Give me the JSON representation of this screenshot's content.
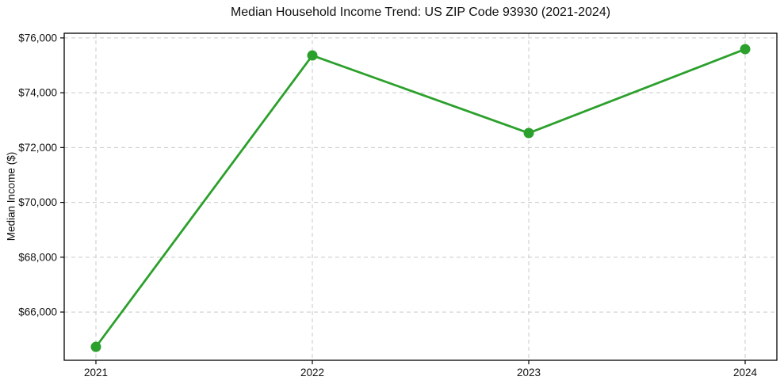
{
  "figure": {
    "title": "Median Household Income Trend: US ZIP Code 93930 (2021-2024)",
    "ylabel": "Median Income ($)"
  },
  "chart_data": {
    "type": "line",
    "title": "Median Household Income Trend: US ZIP Code 93930 (2021-2024)",
    "xlabel": "",
    "ylabel": "Median Income ($)",
    "categories": [
      "2021",
      "2022",
      "2023",
      "2024"
    ],
    "series": [
      {
        "name": "Median Household Income",
        "values": [
          64730,
          75360,
          72530,
          75590
        ]
      }
    ],
    "yticks": [
      66000,
      68000,
      70000,
      72000,
      74000,
      76000
    ],
    "ytick_labels": [
      "$66,000",
      "$68,000",
      "$70,000",
      "$72,000",
      "$74,000",
      "$76,000"
    ],
    "ylim": [
      64240,
      76170
    ],
    "grid": true,
    "grid_style": "dashed",
    "grid_color": "#c9c9c9",
    "line_color": "#2ca02c",
    "marker": "circle",
    "marker_color": "#2ca02c",
    "legend_position": "none"
  }
}
